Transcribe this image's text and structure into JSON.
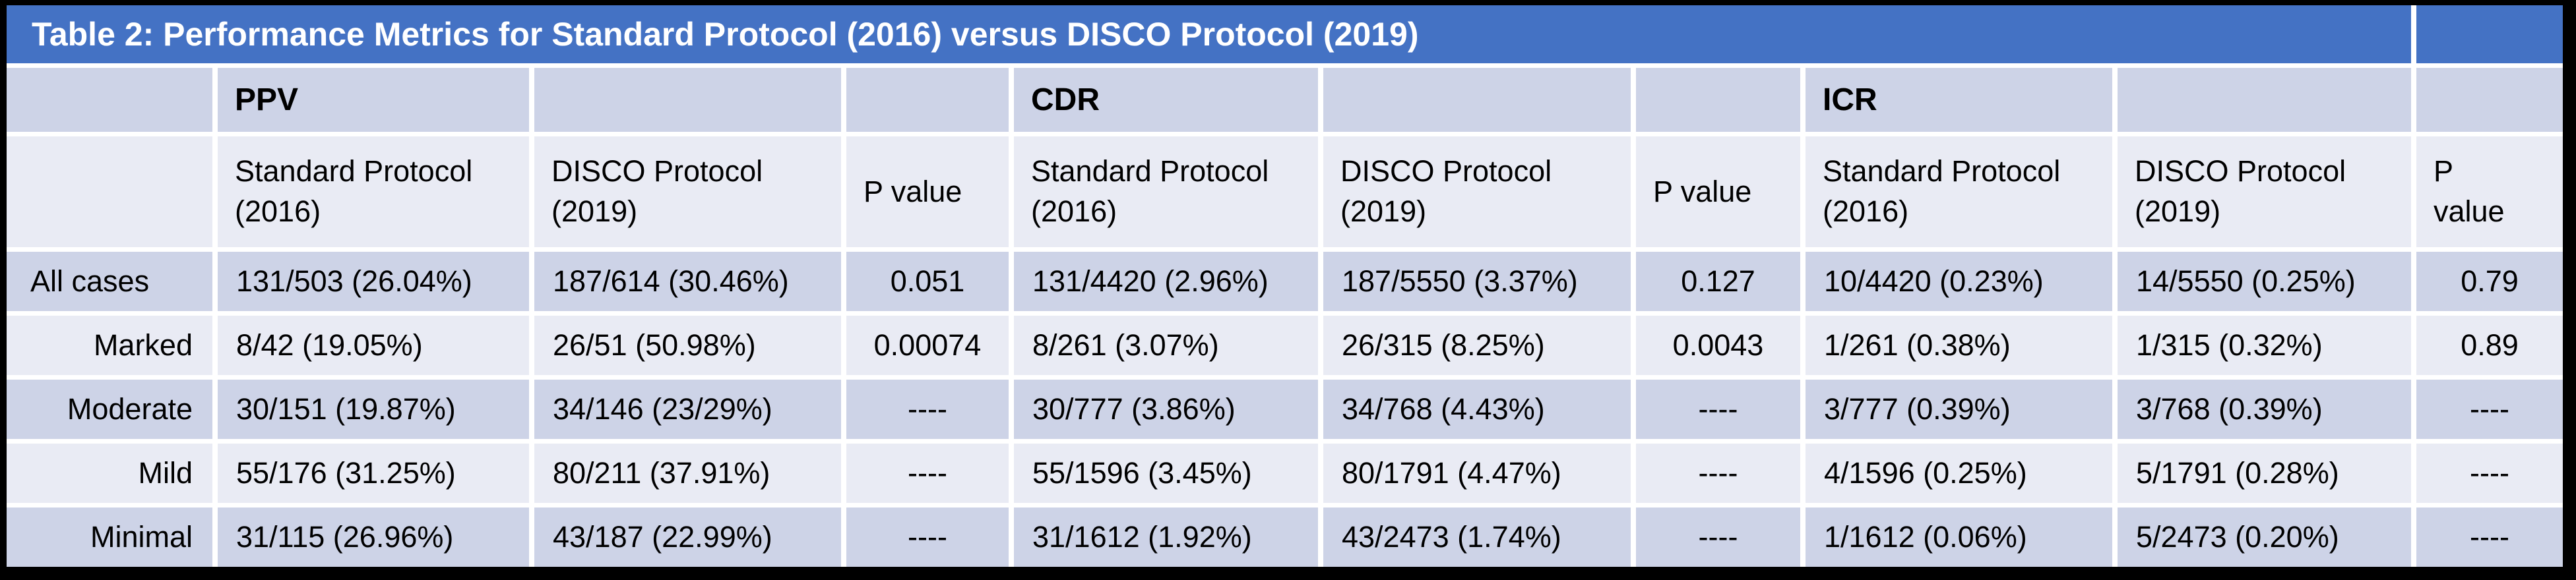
{
  "title": "Table 2: Performance Metrics for Standard Protocol (2016) versus DISCO Protocol (2019)",
  "colors": {
    "title_bar_background": "#4472C4",
    "title_text": "#FFFFFF",
    "band_dark": "#CDD3E7",
    "band_light": "#E9EBF4",
    "outer_border": "#000000",
    "body_text": "#000000"
  },
  "groups": [
    {
      "label": "PPV"
    },
    {
      "label": "CDR"
    },
    {
      "label": "ICR"
    }
  ],
  "subheaders": [
    "Standard Protocol\n(2016)",
    "DISCO Protocol\n(2019)",
    "P value",
    "Standard Protocol\n(2016)",
    "DISCO Protocol\n(2019)",
    "P value",
    "Standard Protocol\n(2016)",
    "DISCO Protocol\n(2019)",
    "P\nvalue"
  ],
  "rows": [
    {
      "label": "All cases",
      "cells": [
        "131/503 (26.04%)",
        "187/614 (30.46%)",
        "0.051",
        "131/4420 (2.96%)",
        "187/5550 (3.37%)",
        "0.127",
        "10/4420 (0.23%)",
        "14/5550 (0.25%)",
        "0.79"
      ]
    },
    {
      "label": "Marked",
      "cells": [
        "8/42 (19.05%)",
        "26/51 (50.98%)",
        "0.00074",
        "8/261 (3.07%)",
        "26/315 (8.25%)",
        "0.0043",
        "1/261 (0.38%)",
        "1/315 (0.32%)",
        "0.89"
      ]
    },
    {
      "label": "Moderate",
      "cells": [
        "30/151 (19.87%)",
        "34/146 (23/29%)",
        "----",
        "30/777 (3.86%)",
        "34/768 (4.43%)",
        "----",
        "3/777 (0.39%)",
        "3/768 (0.39%)",
        "----"
      ]
    },
    {
      "label": "Mild",
      "cells": [
        "55/176 (31.25%)",
        "80/211 (37.91%)",
        "----",
        "55/1596 (3.45%)",
        "80/1791 (4.47%)",
        "----",
        "4/1596 (0.25%)",
        "5/1791 (0.28%)",
        "----"
      ]
    },
    {
      "label": "Minimal",
      "cells": [
        "31/115 (26.96%)",
        "43/187 (22.99%)",
        "----",
        "31/1612 (1.92%)",
        "43/2473 (1.74%)",
        "----",
        "1/1612 (0.06%)",
        "5/2473 (0.20%)",
        "----"
      ]
    }
  ]
}
